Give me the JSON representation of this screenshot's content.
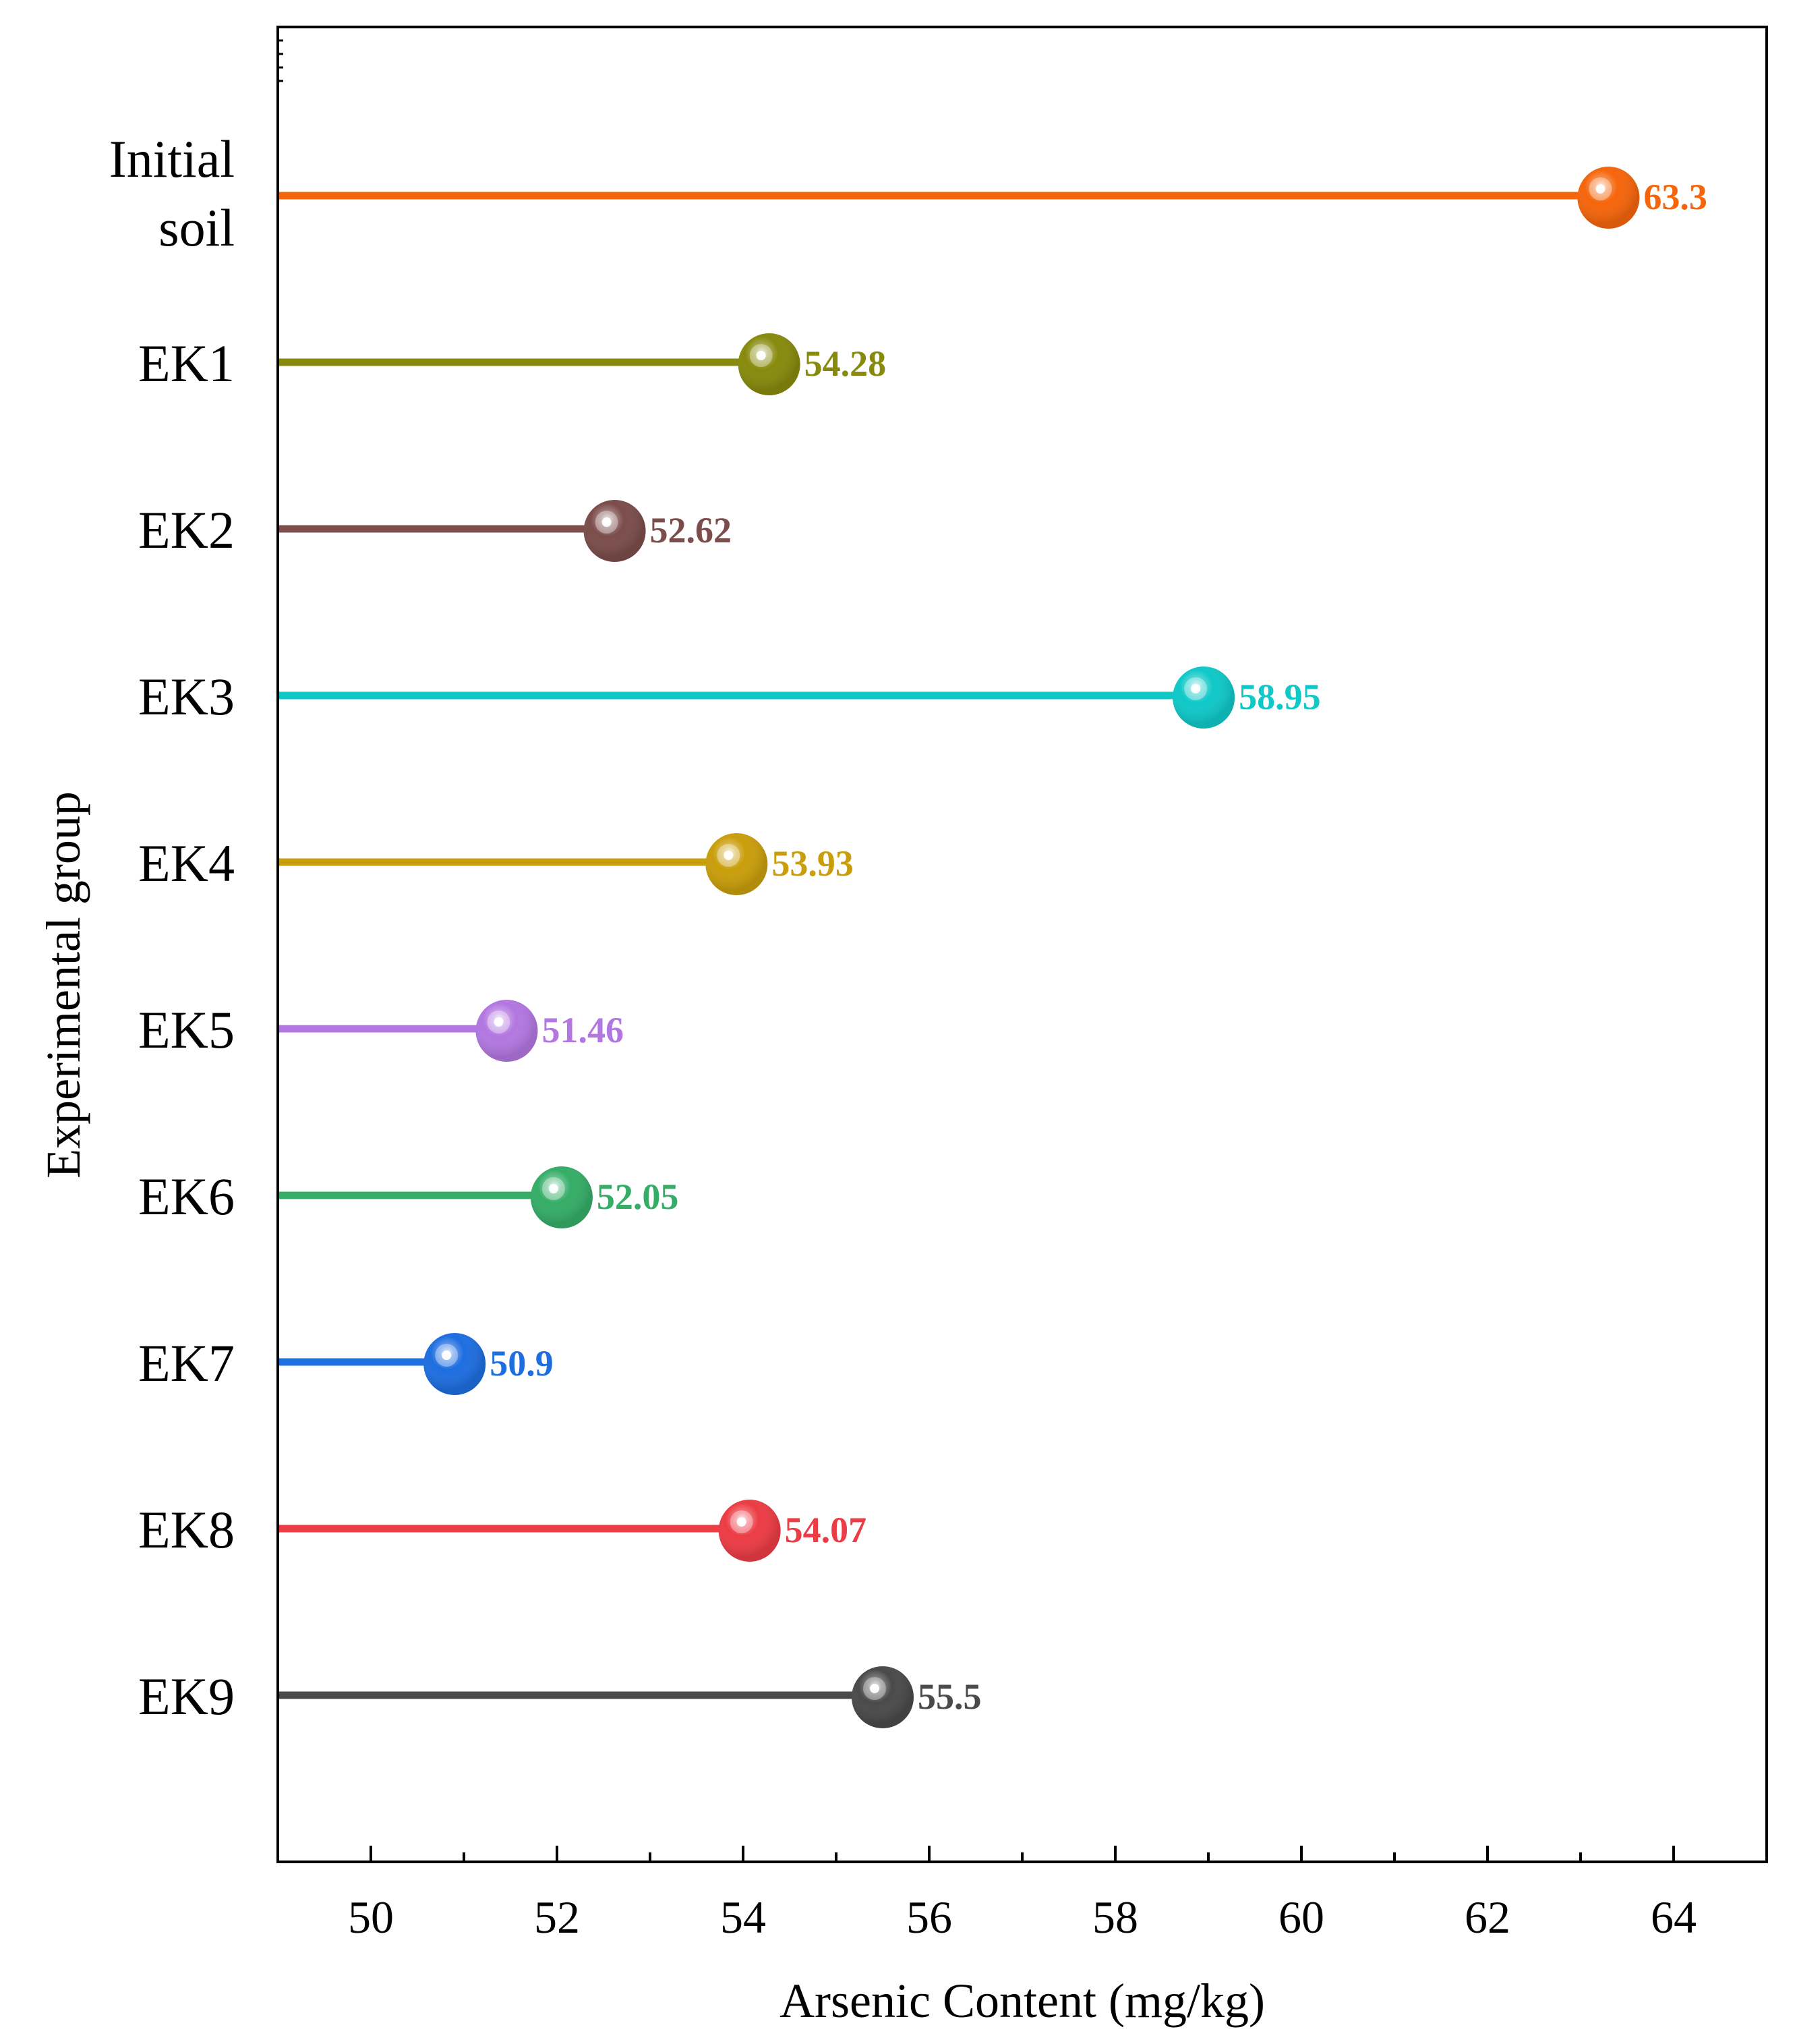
{
  "chart_data": {
    "type": "lollipop",
    "orientation": "horizontal",
    "title": "",
    "xlabel": "Arsenic Content (mg/kg)",
    "ylabel": "Experimental group",
    "xlim": [
      49,
      65
    ],
    "xticks": [
      50,
      52,
      54,
      56,
      58,
      60,
      62,
      64
    ],
    "grid": false,
    "categories": [
      {
        "label": [
          "Initial",
          "soil"
        ],
        "value": 63.3,
        "value_label": "63.3",
        "color": "#f5650c"
      },
      {
        "label": [
          "EK1"
        ],
        "value": 54.28,
        "value_label": "54.28",
        "color": "#878a0c"
      },
      {
        "label": [
          "EK2"
        ],
        "value": 52.62,
        "value_label": "52.62",
        "color": "#7b4d4b"
      },
      {
        "label": [
          "EK3"
        ],
        "value": 58.95,
        "value_label": "58.95",
        "color": "#10c8c8"
      },
      {
        "label": [
          "EK4"
        ],
        "value": 53.93,
        "value_label": "53.93",
        "color": "#c99e0c"
      },
      {
        "label": [
          "EK5"
        ],
        "value": 51.46,
        "value_label": "51.46",
        "color": "#b277e0"
      },
      {
        "label": [
          "EK6"
        ],
        "value": 52.05,
        "value_label": "52.05",
        "color": "#35ad67"
      },
      {
        "label": [
          "EK7"
        ],
        "value": 50.9,
        "value_label": "50.9",
        "color": "#1e6ee0"
      },
      {
        "label": [
          "EK8"
        ],
        "value": 54.07,
        "value_label": "54.07",
        "color": "#ec3c45"
      },
      {
        "label": [
          "EK9"
        ],
        "value": 55.5,
        "value_label": "55.5",
        "color": "#4a4a4a"
      }
    ]
  }
}
